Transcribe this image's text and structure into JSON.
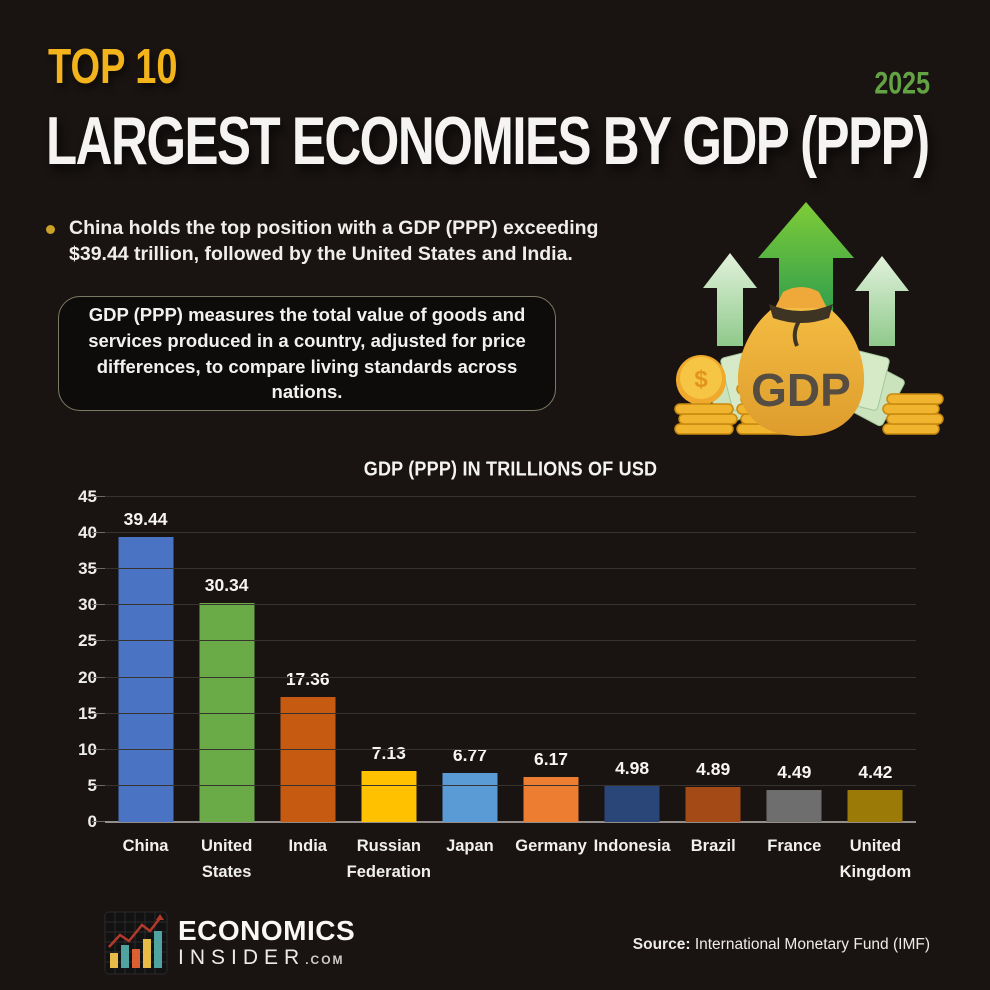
{
  "page": {
    "background": "#191412"
  },
  "header": {
    "kicker": "TOP 10",
    "kicker_color": "#F2B31B",
    "year": "2025",
    "year_color": "#63A344",
    "title": "LARGEST ECONOMIES BY GDP (PPP)"
  },
  "intro": {
    "bullet_text": "China holds the top position with a GDP (PPP) exceeding $39.44 trillion, followed by the United States and India.",
    "info_box_text": "GDP (PPP) measures the total value of goods and services produced in a country, adjusted for price differences, to compare living standards across nations."
  },
  "illustration": {
    "bag_label": "GDP"
  },
  "chart_data": {
    "type": "bar",
    "title": "GDP (PPP) IN TRILLIONS OF USD",
    "categories": [
      "China",
      "United States",
      "India",
      "Russian Federation",
      "Japan",
      "Germany",
      "Indonesia",
      "Brazil",
      "France",
      "United Kingdom"
    ],
    "values": [
      39.44,
      30.34,
      17.36,
      7.13,
      6.77,
      6.17,
      4.98,
      4.89,
      4.49,
      4.42
    ],
    "bar_colors": [
      "#4A73C4",
      "#6AAB47",
      "#C65A11",
      "#FFC100",
      "#5B9BD5",
      "#ED7D31",
      "#2A4678",
      "#A34A16",
      "#6E6E6E",
      "#9C7A08"
    ],
    "ylabel": "",
    "xlabel": "",
    "ylim": [
      0,
      45
    ],
    "ytick_step": 5,
    "grid": true,
    "legend": "none",
    "value_labels": true
  },
  "footer": {
    "logo_line1": "ECONOMICS",
    "logo_line2": "INSIDER",
    "logo_suffix": ".COM",
    "source_label": "Source:",
    "source_text": "International Monetary Fund (IMF)"
  }
}
